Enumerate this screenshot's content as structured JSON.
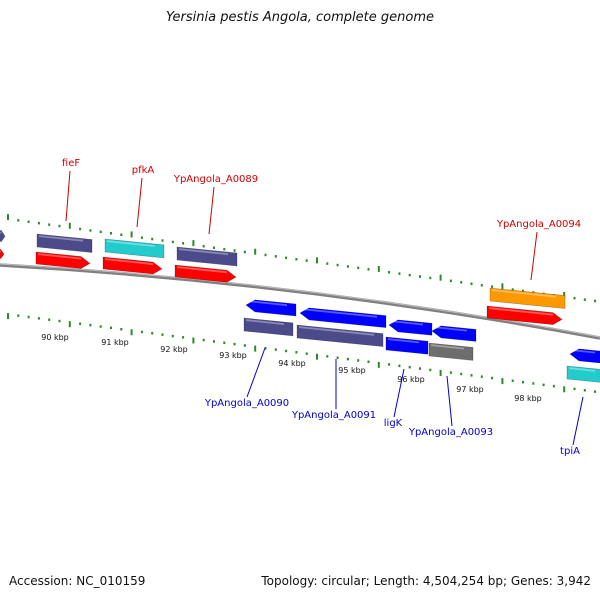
{
  "title": "Yersinia pestis Angola, complete genome",
  "footer": {
    "accession": "Accession: NC_010159",
    "summary": "Topology: circular; Length: 4,504,254 bp; Genes: 3,942"
  },
  "colors": {
    "forward_label": "#cc0000",
    "reverse_label": "#0000cc",
    "backbone": "#808080",
    "tick": "#2a8a2a",
    "cds_forward": "#ff0000",
    "cds_reverse": "#0000ff",
    "gene_slate": "#4b4b8c",
    "gene_cyan": "#22cccc",
    "gene_orange": "#ff9900",
    "gene_grey": "#6e6e6e"
  },
  "scale_labels": [
    "90 kbp",
    "91 kbp",
    "92 kbp",
    "93 kbp",
    "94 kbp",
    "95 kbp",
    "96 kbp",
    "97 kbp",
    "98 kbp"
  ],
  "forward_gene_labels": [
    "fieF",
    "pfkA",
    "YpAngola_A0089",
    "YpAngola_A0094"
  ],
  "reverse_gene_labels": [
    "YpAngola_A0090",
    "YpAngola_A0091",
    "ligK",
    "YpAngola_A0093",
    "tpiA"
  ]
}
